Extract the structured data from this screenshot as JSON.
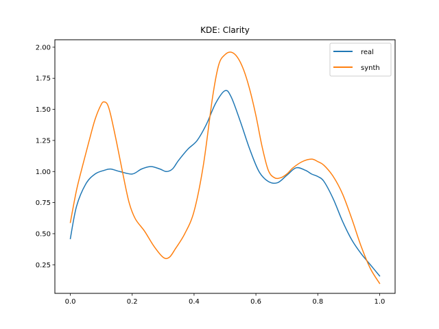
{
  "chart_data": {
    "type": "line",
    "title": "KDE: Clarity",
    "xlabel": "",
    "ylabel": "",
    "xlim": [
      -0.05,
      1.05
    ],
    "ylim": [
      0.02,
      2.06
    ],
    "x_ticks": [
      0.0,
      0.2,
      0.4,
      0.6,
      0.8,
      1.0
    ],
    "x_tick_labels": [
      "0.0",
      "0.2",
      "0.4",
      "0.6",
      "0.8",
      "1.0"
    ],
    "y_ticks": [
      0.25,
      0.5,
      0.75,
      1.0,
      1.25,
      1.5,
      1.75,
      2.0
    ],
    "y_tick_labels": [
      "0.25",
      "0.50",
      "0.75",
      "1.00",
      "1.25",
      "1.50",
      "1.75",
      "2.00"
    ],
    "grid": false,
    "legend_position": "top-right",
    "series": [
      {
        "name": "real",
        "color": "#1f77b4",
        "x": [
          0.0,
          0.02,
          0.05,
          0.08,
          0.11,
          0.13,
          0.16,
          0.2,
          0.23,
          0.26,
          0.29,
          0.31,
          0.33,
          0.35,
          0.38,
          0.41,
          0.44,
          0.47,
          0.5,
          0.52,
          0.55,
          0.58,
          0.61,
          0.64,
          0.67,
          0.7,
          0.73,
          0.76,
          0.78,
          0.8,
          0.82,
          0.85,
          0.88,
          0.91,
          0.94,
          0.97,
          1.0
        ],
        "y": [
          0.46,
          0.72,
          0.9,
          0.98,
          1.01,
          1.02,
          1.0,
          0.98,
          1.02,
          1.04,
          1.02,
          1.0,
          1.02,
          1.09,
          1.18,
          1.25,
          1.38,
          1.55,
          1.65,
          1.6,
          1.4,
          1.18,
          1.0,
          0.92,
          0.91,
          0.97,
          1.03,
          1.01,
          0.98,
          0.96,
          0.92,
          0.78,
          0.6,
          0.45,
          0.34,
          0.25,
          0.16
        ]
      },
      {
        "name": "synth",
        "color": "#ff7f0e",
        "x": [
          0.0,
          0.02,
          0.04,
          0.06,
          0.08,
          0.1,
          0.11,
          0.12,
          0.13,
          0.15,
          0.17,
          0.19,
          0.21,
          0.24,
          0.27,
          0.3,
          0.32,
          0.34,
          0.37,
          0.4,
          0.43,
          0.46,
          0.48,
          0.5,
          0.52,
          0.54,
          0.56,
          0.58,
          0.6,
          0.62,
          0.64,
          0.66,
          0.68,
          0.7,
          0.72,
          0.75,
          0.78,
          0.8,
          0.82,
          0.85,
          0.88,
          0.91,
          0.94,
          0.97,
          1.0
        ],
        "y": [
          0.59,
          0.85,
          1.05,
          1.24,
          1.42,
          1.54,
          1.56,
          1.54,
          1.46,
          1.23,
          0.98,
          0.75,
          0.62,
          0.52,
          0.4,
          0.31,
          0.31,
          0.38,
          0.5,
          0.68,
          1.05,
          1.6,
          1.86,
          1.94,
          1.96,
          1.92,
          1.82,
          1.66,
          1.45,
          1.2,
          1.01,
          0.95,
          0.95,
          0.98,
          1.03,
          1.08,
          1.1,
          1.08,
          1.05,
          0.96,
          0.82,
          0.62,
          0.4,
          0.22,
          0.1
        ]
      }
    ]
  }
}
